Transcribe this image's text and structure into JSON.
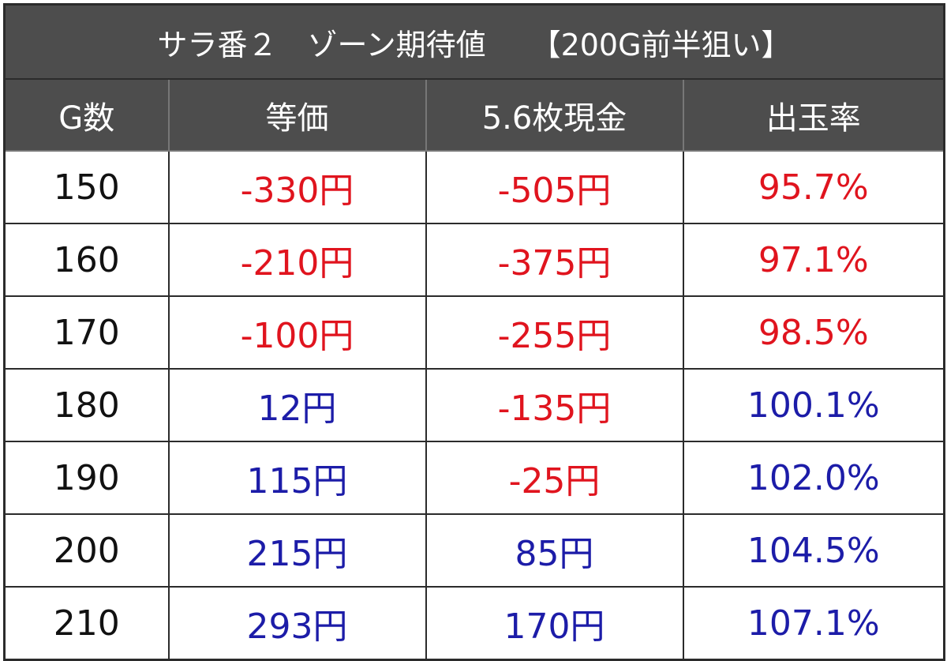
{
  "table": {
    "title": "サラ番２　ゾーン期待値　　【200G前半狙い】",
    "header": [
      "G数",
      "等価",
      "5.6枚現金",
      "出玉率"
    ],
    "rows": [
      [
        {
          "text": "150",
          "color": "#111111"
        },
        {
          "text": "-330円",
          "color": "#e0141e"
        },
        {
          "text": "-505円",
          "color": "#e0141e"
        },
        {
          "text": "95.7%",
          "color": "#e0141e"
        }
      ],
      [
        {
          "text": "160",
          "color": "#111111"
        },
        {
          "text": "-210円",
          "color": "#e0141e"
        },
        {
          "text": "-375円",
          "color": "#e0141e"
        },
        {
          "text": "97.1%",
          "color": "#e0141e"
        }
      ],
      [
        {
          "text": "170",
          "color": "#111111"
        },
        {
          "text": "-100円",
          "color": "#e0141e"
        },
        {
          "text": "-255円",
          "color": "#e0141e"
        },
        {
          "text": "98.5%",
          "color": "#e0141e"
        }
      ],
      [
        {
          "text": "180",
          "color": "#111111"
        },
        {
          "text": "12円",
          "color": "#1c1ca8"
        },
        {
          "text": "-135円",
          "color": "#e0141e"
        },
        {
          "text": "100.1%",
          "color": "#1c1ca8"
        }
      ],
      [
        {
          "text": "190",
          "color": "#111111"
        },
        {
          "text": "115円",
          "color": "#1c1ca8"
        },
        {
          "text": "-25円",
          "color": "#e0141e"
        },
        {
          "text": "102.0%",
          "color": "#1c1ca8"
        }
      ],
      [
        {
          "text": "200",
          "color": "#111111"
        },
        {
          "text": "215円",
          "color": "#1c1ca8"
        },
        {
          "text": "85円",
          "color": "#1c1ca8"
        },
        {
          "text": "104.5%",
          "color": "#1c1ca8"
        }
      ],
      [
        {
          "text": "210",
          "color": "#111111"
        },
        {
          "text": "293円",
          "color": "#1c1ca8"
        },
        {
          "text": "170円",
          "color": "#1c1ca8"
        },
        {
          "text": "107.1%",
          "color": "#1c1ca8"
        }
      ]
    ]
  }
}
